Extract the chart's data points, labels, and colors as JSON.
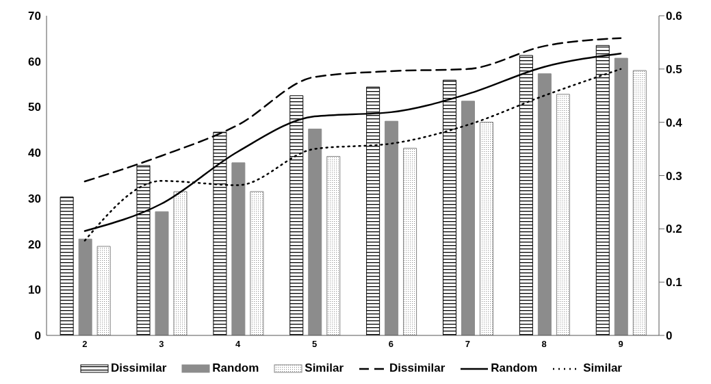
{
  "chart_data": {
    "type": "bar",
    "categories": [
      "2",
      "3",
      "4",
      "5",
      "6",
      "7",
      "8",
      "9"
    ],
    "series": [
      {
        "name": "Dissimilar",
        "color": "#000000",
        "values": [
          30.3,
          37.2,
          44.5,
          52.5,
          54.4,
          55.9,
          61.3,
          63.5
        ]
      },
      {
        "name": "Random",
        "color": "#8c8c8c",
        "values": [
          21.1,
          27.1,
          37.8,
          45.2,
          46.9,
          51.3,
          57.3,
          60.7
        ]
      },
      {
        "name": "Similar",
        "color": "#808080",
        "values": [
          19.5,
          31.5,
          31.5,
          39.2,
          41.0,
          46.7,
          52.8,
          58.0
        ]
      },
      {
        "name": "Dissimilar",
        "type": "line",
        "axis": "y2",
        "line_style": "dashed",
        "color": "#000000",
        "values": [
          0.289,
          0.337,
          0.395,
          0.485,
          0.496,
          0.5,
          0.543,
          0.558
        ]
      },
      {
        "name": "Random",
        "type": "line",
        "axis": "y2",
        "line_style": "solid",
        "color": "#000000",
        "values": [
          0.196,
          0.247,
          0.345,
          0.411,
          0.419,
          0.453,
          0.504,
          0.529
        ]
      },
      {
        "name": "Similar",
        "type": "line",
        "axis": "y2",
        "line_style": "dotted",
        "color": "#000000",
        "values": [
          0.178,
          0.29,
          0.282,
          0.35,
          0.36,
          0.395,
          0.45,
          0.5
        ]
      }
    ],
    "ylim": [
      0,
      70
    ],
    "yticks": [
      0,
      10,
      20,
      30,
      40,
      50,
      60,
      70
    ],
    "y2lim": [
      0,
      0.6
    ],
    "y2ticks": [
      0,
      0.1,
      0.2,
      0.3,
      0.4,
      0.5,
      0.6
    ],
    "grid": false,
    "legend": "bottom"
  }
}
